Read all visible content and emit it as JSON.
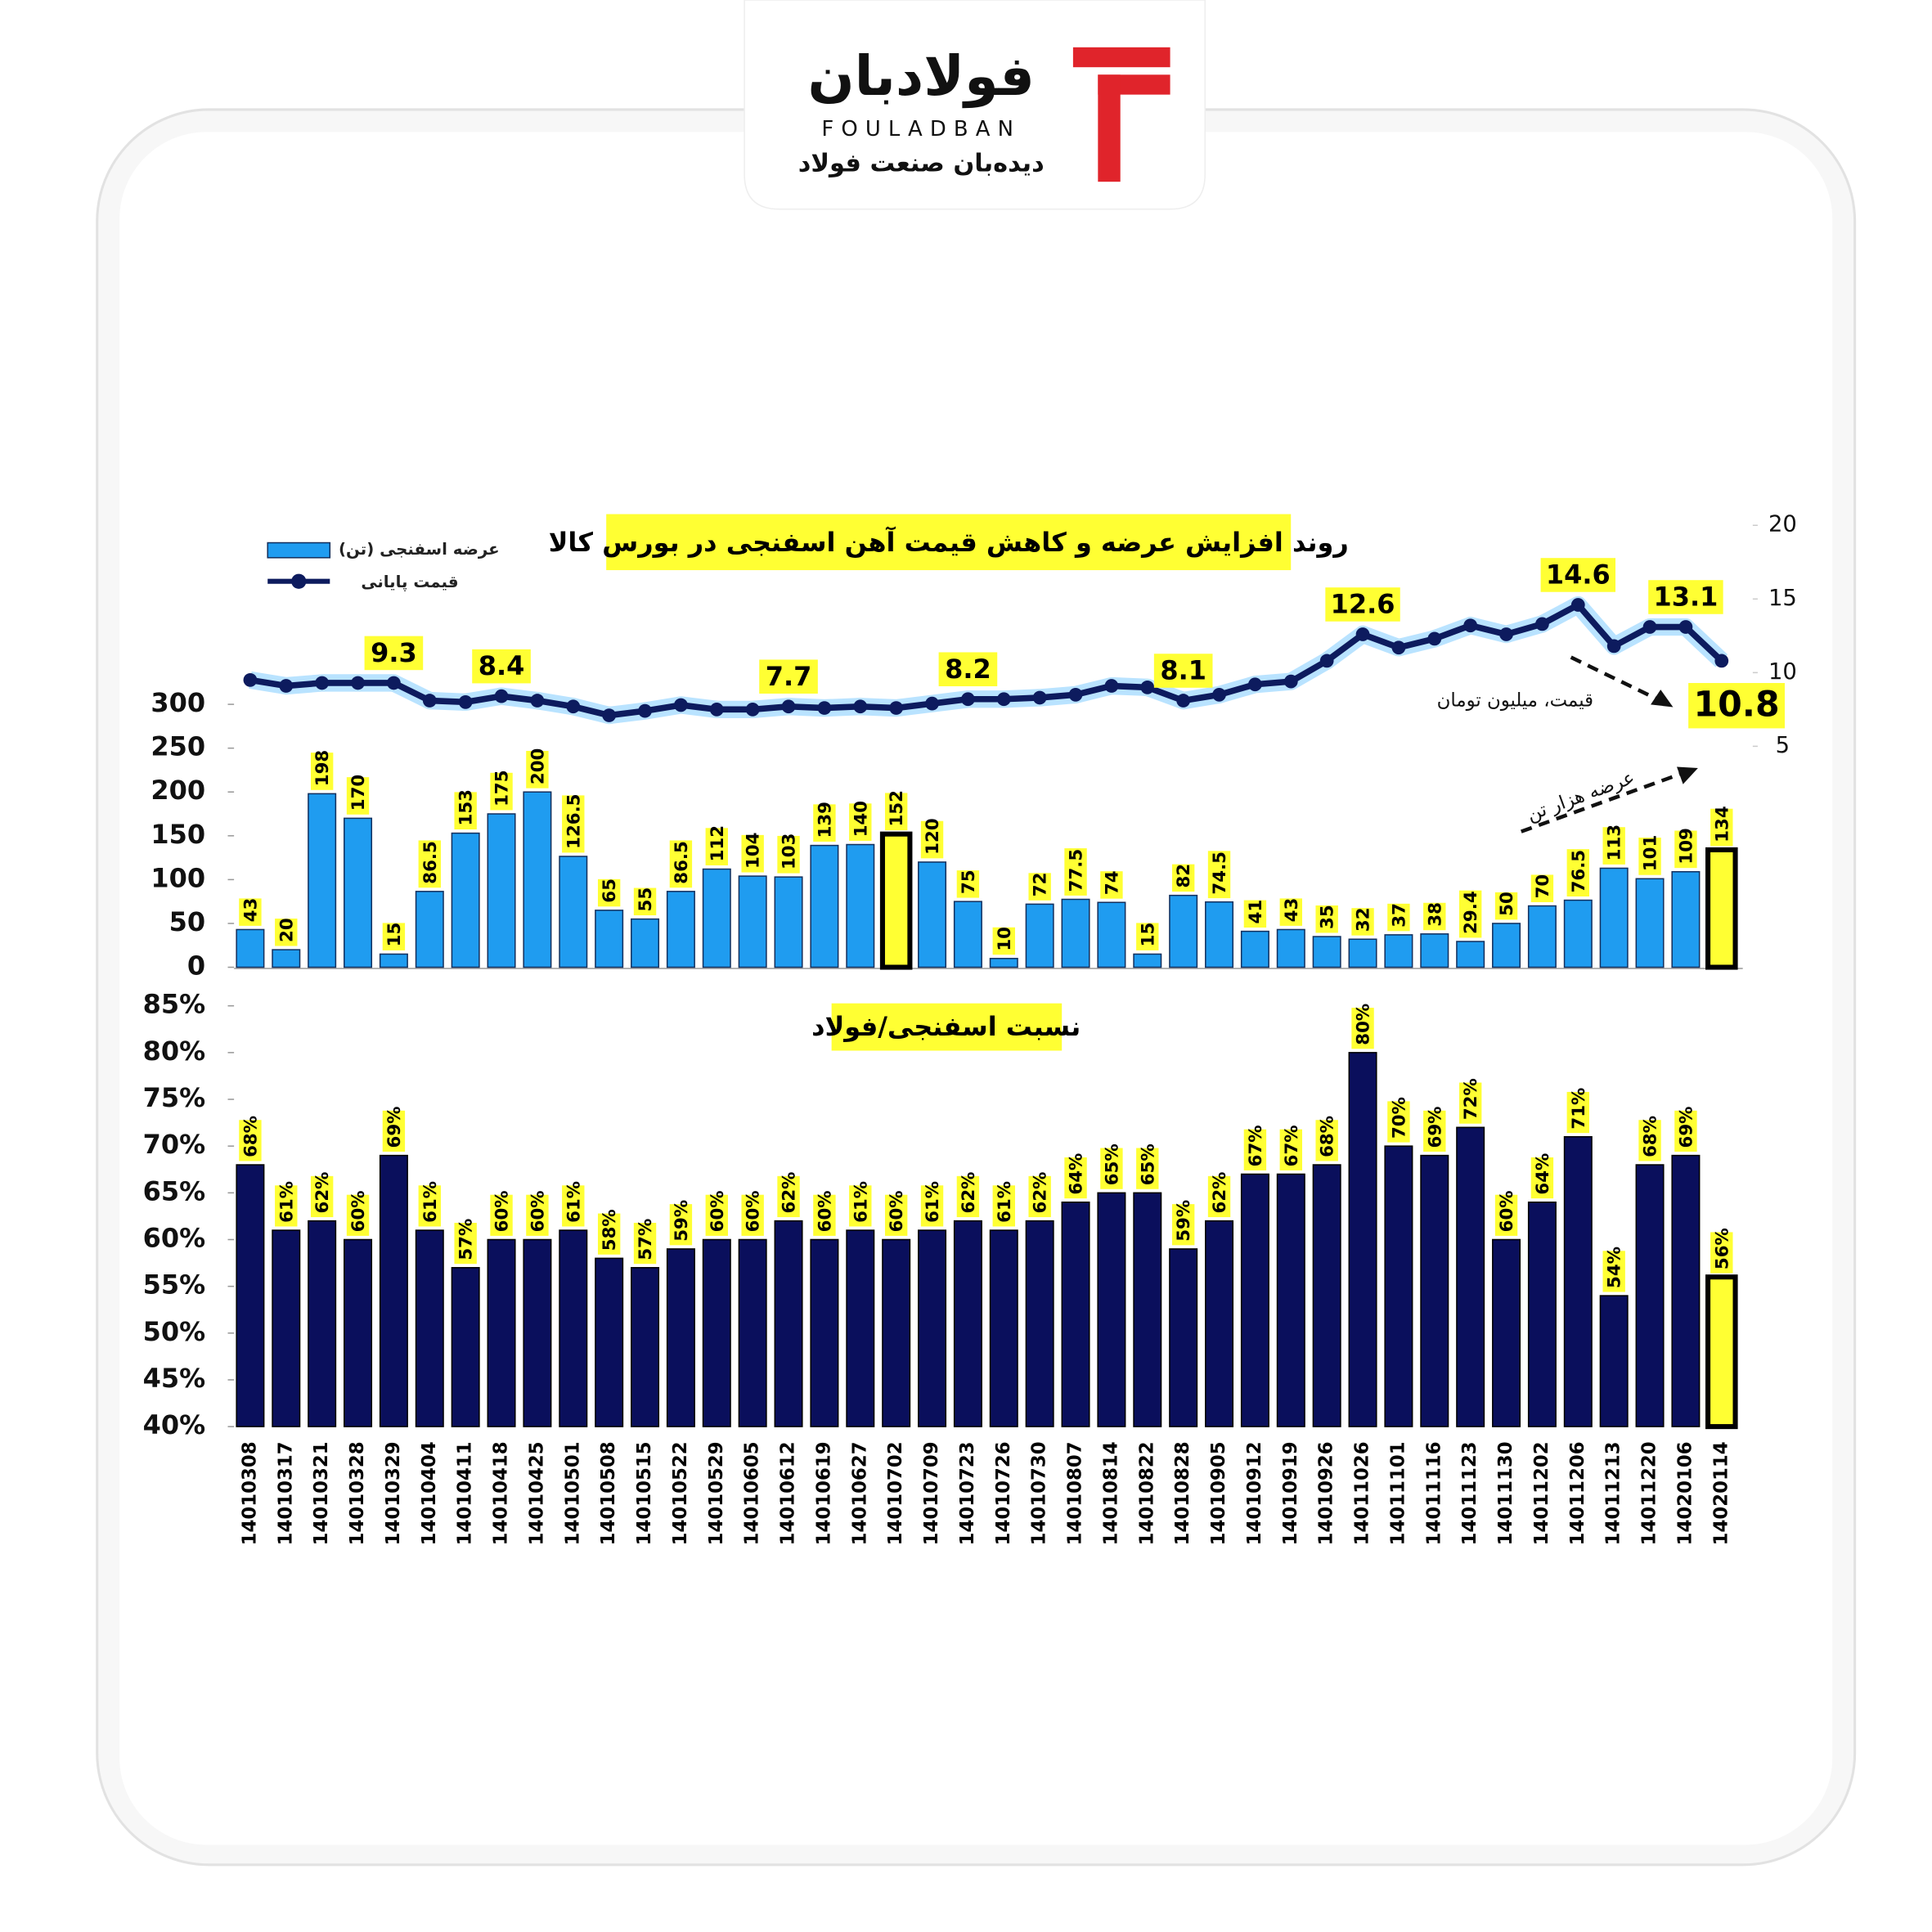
{
  "logo": {
    "name": "فولادبان",
    "latin": "FOULADBAN",
    "tagline": "دیده‌بان صنعت فولاد"
  },
  "chart_data": [
    {
      "type": "bar_line",
      "title": "روند افزایش عرضه و کاهش قیمت آهن اسفنجی در بورس کالا",
      "annotations": [
        "قیمت، میلیون تومان",
        "عرضه هزار تن"
      ],
      "categories": [
        "14010308",
        "14010317",
        "14010321",
        "14010328",
        "14010329",
        "14010404",
        "14010411",
        "14010418",
        "14010425",
        "14010501",
        "14010508",
        "14010515",
        "14010522",
        "14010529",
        "14010605",
        "14010612",
        "14010619",
        "14010627",
        "14010702",
        "14010709",
        "14010723",
        "14010726",
        "14010730",
        "14010807",
        "14010814",
        "14010822",
        "14010828",
        "14010905",
        "14010912",
        "14010919",
        "14010926",
        "14011026",
        "14011101",
        "14011116",
        "14011123",
        "14011130",
        "14011202",
        "14011206",
        "14011213",
        "14011220",
        "14020106",
        "14020114"
      ],
      "ylim": [
        0,
        500
      ],
      "yticks": [
        0,
        50,
        100,
        150,
        200,
        250,
        300
      ],
      "y2lim": [
        -10,
        20
      ],
      "y2ticks": [
        5,
        10,
        15,
        20
      ],
      "series": [
        {
          "name": "عرضه اسفنجی (تن)",
          "color": "#1f9cf0",
          "values": [
            43,
            20,
            198,
            170,
            15,
            86.5,
            153,
            175,
            200,
            126.5,
            65,
            55,
            86.5,
            112,
            104,
            103,
            139,
            140,
            152,
            120,
            75,
            10,
            72,
            77.5,
            74,
            15,
            82,
            74.5,
            41,
            43,
            35,
            32,
            37,
            38,
            29.4,
            50,
            70,
            76.5,
            113,
            101,
            109,
            134
          ],
          "colors": [
            "#1f9cf0",
            "#1f9cf0",
            "#1f9cf0",
            "#1f9cf0",
            "#1f9cf0",
            "#1f9cf0",
            "#1f9cf0",
            "#1f9cf0",
            "#1f9cf0",
            "#1f9cf0",
            "#1f9cf0",
            "#1f9cf0",
            "#1f9cf0",
            "#1f9cf0",
            "#1f9cf0",
            "#1f9cf0",
            "#1f9cf0",
            "#1f9cf0",
            "#ffff33",
            "#1f9cf0",
            "#1f9cf0",
            "#1f9cf0",
            "#1f9cf0",
            "#1f9cf0",
            "#1f9cf0",
            "#1f9cf0",
            "#1f9cf0",
            "#1f9cf0",
            "#1f9cf0",
            "#1f9cf0",
            "#1f9cf0",
            "#1f9cf0",
            "#1f9cf0",
            "#1f9cf0",
            "#1f9cf0",
            "#1f9cf0",
            "#1f9cf0",
            "#1f9cf0",
            "#1f9cf0",
            "#1f9cf0",
            "#1f9cf0",
            "#ffff33"
          ]
        },
        {
          "name": "قیمت پایانی",
          "color": "#0d1b5e",
          "axis": "y2",
          "values": [
            9.5,
            9.1,
            9.3,
            9.3,
            9.3,
            8.1,
            8.0,
            8.4,
            8.1,
            7.7,
            7.1,
            7.4,
            7.8,
            7.5,
            7.5,
            7.7,
            7.6,
            7.7,
            7.6,
            7.9,
            8.2,
            8.2,
            8.3,
            8.5,
            9.1,
            9.0,
            8.1,
            8.5,
            9.2,
            9.4,
            10.8,
            12.6,
            11.7,
            12.3,
            13.2,
            12.6,
            13.3,
            14.6,
            11.8,
            13.1,
            13.1,
            10.8
          ],
          "value_labels": [
            null,
            null,
            null,
            null,
            "9.3",
            null,
            null,
            "8.4",
            null,
            null,
            null,
            null,
            null,
            null,
            null,
            "7.7",
            null,
            null,
            null,
            null,
            "8.2",
            null,
            null,
            null,
            null,
            null,
            "8.1",
            null,
            null,
            null,
            null,
            "12.6",
            null,
            null,
            null,
            null,
            null,
            "14.6",
            null,
            null,
            "13.1",
            "10.8"
          ]
        }
      ]
    },
    {
      "type": "bar",
      "title": "نسبت اسفنجی/فولاد",
      "ylim": [
        40,
        85
      ],
      "yticks": [
        {
          "value": 40,
          "label": "40%"
        },
        {
          "value": 45,
          "label": "45%"
        },
        {
          "value": 50,
          "label": "50%"
        },
        {
          "value": 55,
          "label": "55%"
        },
        {
          "value": 60,
          "label": "60%"
        },
        {
          "value": 65,
          "label": "65%"
        },
        {
          "value": 70,
          "label": "70%"
        },
        {
          "value": 75,
          "label": "75%"
        },
        {
          "value": 80,
          "label": "80%"
        },
        {
          "value": 85,
          "label": "85%"
        }
      ],
      "values": [
        68,
        61,
        62,
        60,
        69,
        61,
        57,
        60,
        60,
        61,
        58,
        57,
        59,
        60,
        60,
        62,
        60,
        61,
        60,
        61,
        62,
        61,
        62,
        64,
        65,
        65,
        59,
        62,
        67,
        67,
        68,
        80,
        70,
        69,
        72,
        60,
        64,
        71,
        54,
        68,
        69,
        56
      ],
      "value_labels": [
        "68%",
        "61%",
        "62%",
        "60%",
        "69%",
        "61%",
        "57%",
        "60%",
        "60%",
        "61%",
        "58%",
        "57%",
        "59%",
        "60%",
        "60%",
        "62%",
        "60%",
        "61%",
        "60%",
        "61%",
        "62%",
        "61%",
        "62%",
        "64%",
        "65%",
        "65%",
        "59%",
        "62%",
        "67%",
        "67%",
        "68%",
        "80%",
        "70%",
        "69%",
        "72%",
        "60%",
        "64%",
        "71%",
        "54%",
        "68%",
        "69%",
        "56%"
      ],
      "colors": [
        "#0a0f5c",
        "#0a0f5c",
        "#0a0f5c",
        "#0a0f5c",
        "#0a0f5c",
        "#0a0f5c",
        "#0a0f5c",
        "#0a0f5c",
        "#0a0f5c",
        "#0a0f5c",
        "#0a0f5c",
        "#0a0f5c",
        "#0a0f5c",
        "#0a0f5c",
        "#0a0f5c",
        "#0a0f5c",
        "#0a0f5c",
        "#0a0f5c",
        "#0a0f5c",
        "#0a0f5c",
        "#0a0f5c",
        "#0a0f5c",
        "#0a0f5c",
        "#0a0f5c",
        "#0a0f5c",
        "#0a0f5c",
        "#0a0f5c",
        "#0a0f5c",
        "#0a0f5c",
        "#0a0f5c",
        "#0a0f5c",
        "#0a0f5c",
        "#0a0f5c",
        "#0a0f5c",
        "#0a0f5c",
        "#0a0f5c",
        "#0a0f5c",
        "#0a0f5c",
        "#0a0f5c",
        "#0a0f5c",
        "#0a0f5c",
        "#ffff33"
      ]
    }
  ]
}
